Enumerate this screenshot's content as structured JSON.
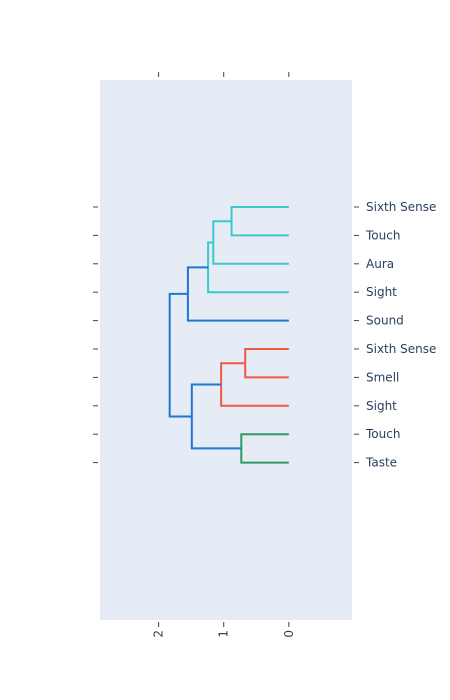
{
  "chart_data": {
    "type": "dendrogram",
    "orientation": "left",
    "x_ticks": [
      2,
      1,
      0
    ],
    "x_range": [
      2.9,
      -0.97
    ],
    "leaves": [
      "Sixth Sense",
      "Touch",
      "Aura",
      "Sight",
      "Sound",
      "Sixth Sense",
      "Smell",
      "Sight",
      "Touch",
      "Taste"
    ],
    "colors": {
      "cluster_a": "#3dc8cc",
      "cluster_b": "#ef5a44",
      "cluster_c": "#2e9965",
      "link": "#1f77d4",
      "plot_bg": "#e5ecf6",
      "tick": "#444444"
    },
    "links": [
      {
        "leaf_a": 0,
        "leaf_b": 1,
        "height": 0.88,
        "color": "cluster_a"
      },
      {
        "leaf_a": 0.5,
        "leaf_b": 2,
        "height": 1.16,
        "color": "cluster_a"
      },
      {
        "leaf_a": 1.25,
        "leaf_b": 3,
        "height": 1.24,
        "color": "cluster_a"
      },
      {
        "leaf_a": 2.125,
        "leaf_b": 4,
        "height": 1.55,
        "color": "link"
      },
      {
        "leaf_a": 5,
        "leaf_b": 6,
        "height": 0.67,
        "color": "cluster_b"
      },
      {
        "leaf_a": 5.5,
        "leaf_b": 7,
        "height": 1.04,
        "color": "cluster_b"
      },
      {
        "leaf_a": 8,
        "leaf_b": 9,
        "height": 0.73,
        "color": "cluster_c"
      },
      {
        "leaf_a": 6.25,
        "leaf_b": 8.5,
        "height": 1.49,
        "color": "link"
      },
      {
        "leaf_a": 3.06,
        "leaf_b": 7.375,
        "height": 1.83,
        "color": "link"
      }
    ]
  }
}
